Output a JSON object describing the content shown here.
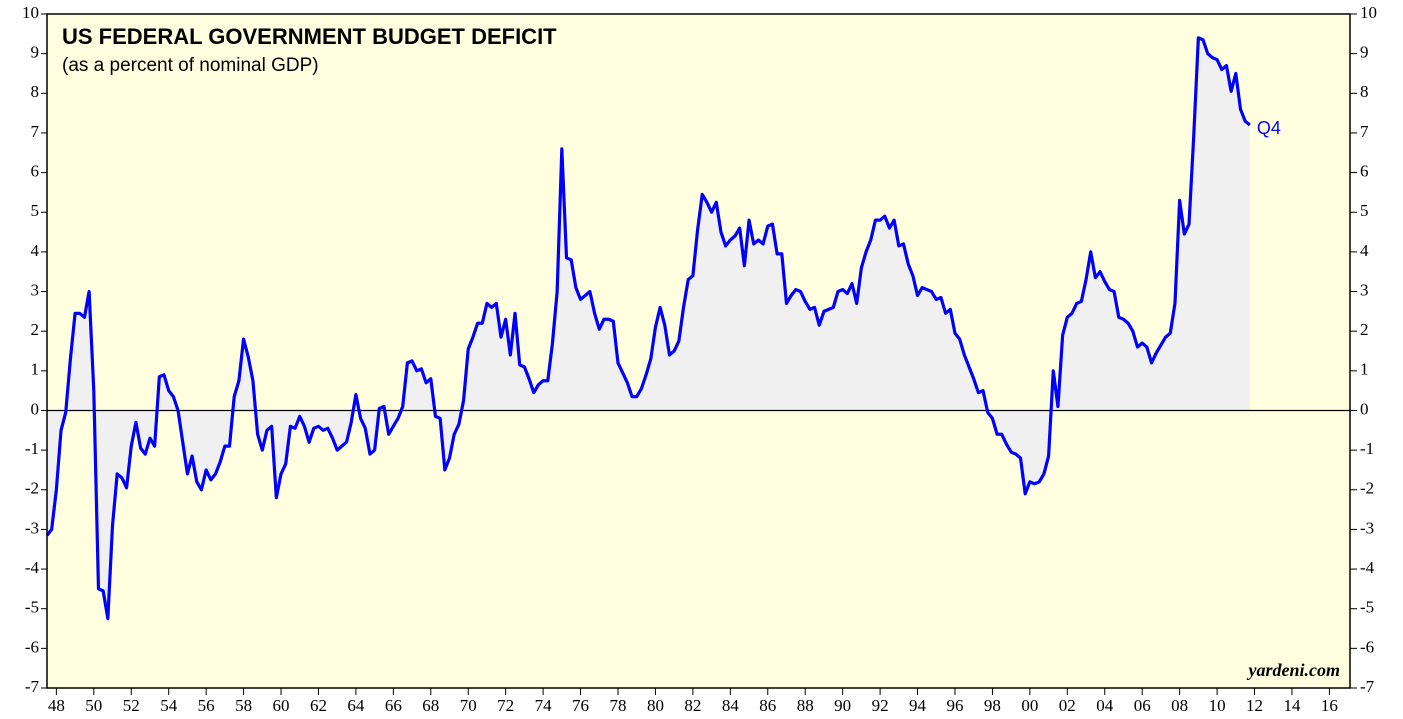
{
  "chart_data": {
    "type": "line",
    "title": "US FEDERAL GOVERNMENT BUDGET DEFICIT",
    "subtitle": "(as a percent of nominal GDP)",
    "annotations": [
      "Q4",
      "yardeni.com"
    ],
    "x": [
      1947.5,
      1947.75,
      1948,
      1948.25,
      1948.5,
      1948.75,
      1949,
      1949.25,
      1949.5,
      1949.75,
      1950,
      1950.25,
      1950.5,
      1950.75,
      1951,
      1951.25,
      1951.5,
      1951.75,
      1952,
      1952.25,
      1952.5,
      1952.75,
      1953,
      1953.25,
      1953.5,
      1953.75,
      1954,
      1954.25,
      1954.5,
      1954.75,
      1955,
      1955.25,
      1955.5,
      1955.75,
      1956,
      1956.25,
      1956.5,
      1956.75,
      1957,
      1957.25,
      1957.5,
      1957.75,
      1958,
      1958.25,
      1958.5,
      1958.75,
      1959,
      1959.25,
      1959.5,
      1959.75,
      1960,
      1960.25,
      1960.5,
      1960.75,
      1961,
      1961.25,
      1961.5,
      1961.75,
      1962,
      1962.25,
      1962.5,
      1962.75,
      1963,
      1963.25,
      1963.5,
      1963.75,
      1964,
      1964.25,
      1964.5,
      1964.75,
      1965,
      1965.25,
      1965.5,
      1965.75,
      1966,
      1966.25,
      1966.5,
      1966.75,
      1967,
      1967.25,
      1967.5,
      1967.75,
      1968,
      1968.25,
      1968.5,
      1968.75,
      1969,
      1969.25,
      1969.5,
      1969.75,
      1970,
      1970.25,
      1970.5,
      1970.75,
      1971,
      1971.25,
      1971.5,
      1971.75,
      1972,
      1972.25,
      1972.5,
      1972.75,
      1973,
      1973.25,
      1973.5,
      1973.75,
      1974,
      1974.25,
      1974.5,
      1974.75,
      1975,
      1975.25,
      1975.5,
      1975.75,
      1976,
      1976.25,
      1976.5,
      1976.75,
      1977,
      1977.25,
      1977.5,
      1977.75,
      1978,
      1978.25,
      1978.5,
      1978.75,
      1979,
      1979.25,
      1979.5,
      1979.75,
      1980,
      1980.25,
      1980.5,
      1980.75,
      1981,
      1981.25,
      1981.5,
      1981.75,
      1982,
      1982.25,
      1982.5,
      1982.75,
      1983,
      1983.25,
      1983.5,
      1983.75,
      1984,
      1984.25,
      1984.5,
      1984.75,
      1985,
      1985.25,
      1985.5,
      1985.75,
      1986,
      1986.25,
      1986.5,
      1986.75,
      1987,
      1987.25,
      1987.5,
      1987.75,
      1988,
      1988.25,
      1988.5,
      1988.75,
      1989,
      1989.25,
      1989.5,
      1989.75,
      1990,
      1990.25,
      1990.5,
      1990.75,
      1991,
      1991.25,
      1991.5,
      1991.75,
      1992,
      1992.25,
      1992.5,
      1992.75,
      1993,
      1993.25,
      1993.5,
      1993.75,
      1994,
      1994.25,
      1994.5,
      1994.75,
      1995,
      1995.25,
      1995.5,
      1995.75,
      1996,
      1996.25,
      1996.5,
      1996.75,
      1997,
      1997.25,
      1997.5,
      1997.75,
      1998,
      1998.25,
      1998.5,
      1998.75,
      1999,
      1999.25,
      1999.5,
      1999.75,
      2000,
      2000.25,
      2000.5,
      2000.75,
      2001,
      2001.25,
      2001.5,
      2001.75,
      2002,
      2002.25,
      2002.5,
      2002.75,
      2003,
      2003.25,
      2003.5,
      2003.75,
      2004,
      2004.25,
      2004.5,
      2004.75,
      2005,
      2005.25,
      2005.5,
      2005.75,
      2006,
      2006.25,
      2006.5,
      2006.75,
      2007,
      2007.25,
      2007.5,
      2007.75,
      2008,
      2008.25,
      2008.5,
      2008.75,
      2009,
      2009.25,
      2009.5,
      2009.75,
      2010,
      2010.25,
      2010.5,
      2010.75,
      2011,
      2011.25,
      2011.5,
      2011.75
    ],
    "series": [
      {
        "color": "#0000ff",
        "fill": "#f0f0f0",
        "values": [
          -3.15,
          -3.0,
          -2.0,
          -0.5,
          -0.05,
          1.3,
          2.45,
          2.45,
          2.35,
          3.0,
          0.5,
          -4.5,
          -4.55,
          -5.25,
          -2.9,
          -1.6,
          -1.7,
          -1.95,
          -0.9,
          -0.3,
          -0.95,
          -1.1,
          -0.7,
          -0.9,
          0.85,
          0.9,
          0.5,
          0.35,
          0.0,
          -0.8,
          -1.6,
          -1.15,
          -1.8,
          -2.0,
          -1.5,
          -1.75,
          -1.6,
          -1.3,
          -0.9,
          -0.9,
          0.35,
          0.75,
          1.8,
          1.35,
          0.75,
          -0.6,
          -1.0,
          -0.5,
          -0.4,
          -2.2,
          -1.6,
          -1.35,
          -0.4,
          -0.45,
          -0.15,
          -0.4,
          -0.8,
          -0.45,
          -0.4,
          -0.5,
          -0.45,
          -0.7,
          -1.0,
          -0.9,
          -0.8,
          -0.3,
          0.4,
          -0.2,
          -0.45,
          -1.1,
          -1.0,
          0.05,
          0.1,
          -0.6,
          -0.4,
          -0.2,
          0.1,
          1.2,
          1.25,
          1.0,
          1.05,
          0.7,
          0.8,
          -0.15,
          -0.2,
          -1.5,
          -1.2,
          -0.6,
          -0.35,
          0.25,
          1.55,
          1.85,
          2.2,
          2.2,
          2.7,
          2.6,
          2.7,
          1.85,
          2.3,
          1.4,
          2.45,
          1.15,
          1.1,
          0.8,
          0.45,
          0.65,
          0.75,
          0.75,
          1.7,
          3.0,
          6.6,
          3.85,
          3.8,
          3.1,
          2.8,
          2.9,
          3.0,
          2.45,
          2.05,
          2.3,
          2.3,
          2.25,
          1.2,
          0.95,
          0.7,
          0.35,
          0.35,
          0.55,
          0.9,
          1.3,
          2.1,
          2.6,
          2.15,
          1.4,
          1.5,
          1.75,
          2.6,
          3.3,
          3.4,
          4.55,
          5.45,
          5.25,
          5.0,
          5.25,
          4.5,
          4.15,
          4.3,
          4.4,
          4.6,
          3.65,
          4.8,
          4.2,
          4.3,
          4.2,
          4.65,
          4.7,
          3.95,
          3.95,
          2.7,
          2.9,
          3.05,
          3.0,
          2.75,
          2.55,
          2.6,
          2.15,
          2.5,
          2.55,
          2.6,
          3.0,
          3.05,
          2.95,
          3.2,
          2.7,
          3.6,
          4.0,
          4.3,
          4.8,
          4.8,
          4.9,
          4.6,
          4.8,
          4.15,
          4.2,
          3.7,
          3.4,
          2.9,
          3.1,
          3.05,
          3.0,
          2.8,
          2.85,
          2.45,
          2.55,
          1.95,
          1.8,
          1.4,
          1.1,
          0.8,
          0.45,
          0.5,
          -0.05,
          -0.2,
          -0.6,
          -0.6,
          -0.85,
          -1.05,
          -1.1,
          -1.2,
          -2.1,
          -1.8,
          -1.85,
          -1.8,
          -1.6,
          -1.15,
          1.0,
          0.1,
          1.9,
          2.35,
          2.45,
          2.7,
          2.75,
          3.3,
          4.0,
          3.35,
          3.5,
          3.25,
          3.05,
          3.0,
          2.35,
          2.3,
          2.2,
          2.0,
          1.6,
          1.7,
          1.6,
          1.2,
          1.45,
          1.65,
          1.85,
          1.95,
          2.7,
          5.3,
          4.45,
          4.7,
          6.9,
          9.4,
          9.35,
          9.0,
          8.9,
          8.85,
          8.6,
          8.7,
          8.05,
          8.5,
          7.6,
          7.3,
          7.2
        ]
      }
    ],
    "xlim": [
      1947.5,
      2017.1
    ],
    "ylim": [
      -7,
      10
    ],
    "yticks": [
      -7,
      -6,
      -5,
      -4,
      -3,
      -2,
      -1,
      0,
      1,
      2,
      3,
      4,
      5,
      6,
      7,
      8,
      9,
      10
    ],
    "xticks": [
      {
        "value": 1948,
        "label": "48"
      },
      {
        "value": 1950,
        "label": "50"
      },
      {
        "value": 1952,
        "label": "52"
      },
      {
        "value": 1954,
        "label": "54"
      },
      {
        "value": 1956,
        "label": "56"
      },
      {
        "value": 1958,
        "label": "58"
      },
      {
        "value": 1960,
        "label": "60"
      },
      {
        "value": 1962,
        "label": "62"
      },
      {
        "value": 1964,
        "label": "64"
      },
      {
        "value": 1966,
        "label": "66"
      },
      {
        "value": 1968,
        "label": "68"
      },
      {
        "value": 1970,
        "label": "70"
      },
      {
        "value": 1972,
        "label": "72"
      },
      {
        "value": 1974,
        "label": "74"
      },
      {
        "value": 1976,
        "label": "76"
      },
      {
        "value": 1978,
        "label": "78"
      },
      {
        "value": 1980,
        "label": "80"
      },
      {
        "value": 1982,
        "label": "82"
      },
      {
        "value": 1984,
        "label": "84"
      },
      {
        "value": 1986,
        "label": "86"
      },
      {
        "value": 1988,
        "label": "88"
      },
      {
        "value": 1990,
        "label": "90"
      },
      {
        "value": 1992,
        "label": "92"
      },
      {
        "value": 1994,
        "label": "94"
      },
      {
        "value": 1996,
        "label": "96"
      },
      {
        "value": 1998,
        "label": "98"
      },
      {
        "value": 2000,
        "label": "00"
      },
      {
        "value": 2002,
        "label": "02"
      },
      {
        "value": 2004,
        "label": "04"
      },
      {
        "value": 2006,
        "label": "06"
      },
      {
        "value": 2008,
        "label": "08"
      },
      {
        "value": 2010,
        "label": "10"
      },
      {
        "value": 2012,
        "label": "12"
      },
      {
        "value": 2014,
        "label": "14"
      },
      {
        "value": 2016,
        "label": "16"
      }
    ],
    "background": "#ffffe0",
    "zero_line": true
  }
}
